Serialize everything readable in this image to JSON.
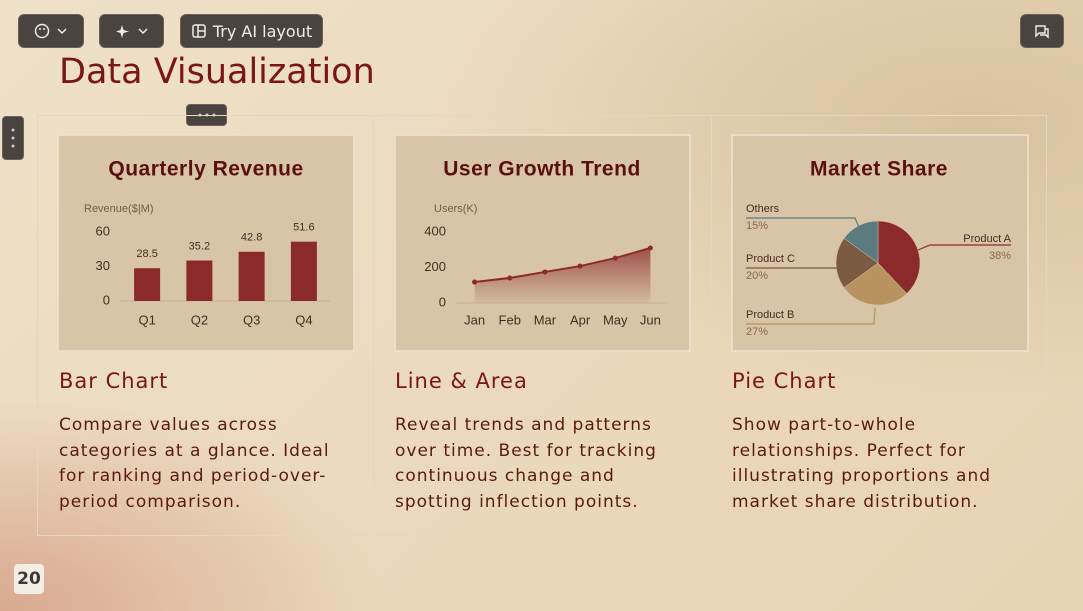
{
  "toolbar": {
    "ai_layout": "Try AI layout"
  },
  "title": "Data Visualization",
  "page_number": "20",
  "cards": [
    {
      "heading": "Bar Chart",
      "description": "Compare values across categories at a glance. Ideal for ranking and period-over-period comparison."
    },
    {
      "heading": "Line & Area",
      "description": "Reveal trends and patterns over time. Best for tracking continuous change and spotting inflection points."
    },
    {
      "heading": "Pie Chart",
      "description": "Show part-to-whole relationships. Perfect for illustrating proportions and market share distribution."
    }
  ],
  "chart_data": [
    {
      "type": "bar",
      "title": "Quarterly Revenue",
      "y_label": "Revenue($|M)",
      "categories": [
        "Q1",
        "Q2",
        "Q3",
        "Q4"
      ],
      "values": [
        28.5,
        35.2,
        42.8,
        51.6
      ],
      "color": "#8b2a2a",
      "ylim": [
        0,
        60
      ],
      "yticks": [
        0,
        30,
        60
      ]
    },
    {
      "type": "line",
      "title": "User Growth Trend",
      "y_label": "Users(K)",
      "categories": [
        "Jan",
        "Feb",
        "Mar",
        "Apr",
        "May",
        "Jun"
      ],
      "values": [
        118,
        141,
        175,
        208,
        253,
        310
      ],
      "color": "#8b2a2a",
      "ylim": [
        0,
        400
      ],
      "yticks": [
        0,
        200,
        400
      ]
    },
    {
      "type": "pie",
      "title": "Market Share",
      "categories": [
        "Product A",
        "Product B",
        "Product C",
        "Others"
      ],
      "values": [
        38,
        27,
        20,
        15
      ],
      "value_labels": [
        "38%",
        "27%",
        "20%",
        "15%"
      ],
      "colors": [
        "#8b2a2a",
        "#b8925f",
        "#7a5a40",
        "#5b7b80"
      ]
    }
  ]
}
